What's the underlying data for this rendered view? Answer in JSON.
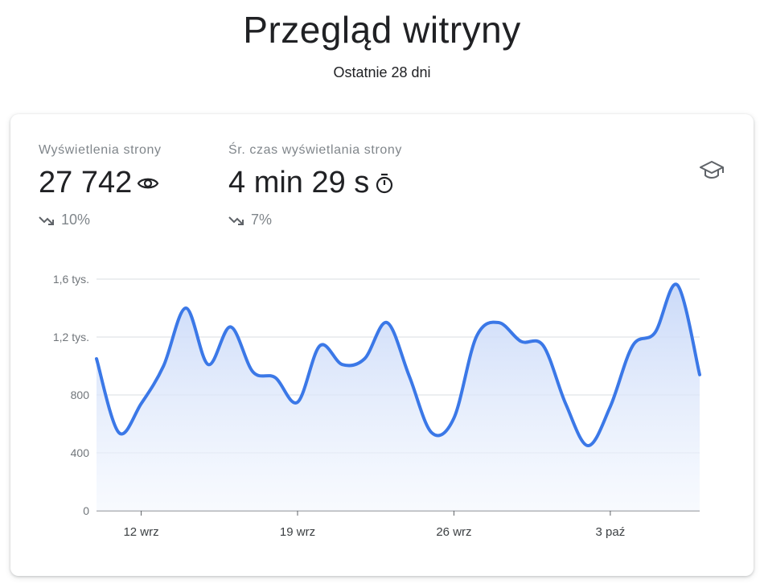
{
  "header": {
    "title": "Przegląd witryny",
    "subtitle": "Ostatnie 28 dni"
  },
  "metrics": [
    {
      "label": "Wyświetlenia strony",
      "value": "27 742",
      "icon": "eye-icon",
      "change": "10%",
      "trend": "down"
    },
    {
      "label": "Śr. czas wyświetlania strony",
      "value": "4 min 29 s",
      "icon": "timer-icon",
      "change": "7%",
      "trend": "down"
    }
  ],
  "help_icon": "graduation-cap-icon",
  "colors": {
    "line": "#3b78e7",
    "fill_top": "#c8d8f8",
    "fill_bottom": "#f3f7fe",
    "grid": "#dadce0",
    "text_secondary": "#80868b"
  },
  "chart_data": {
    "type": "area",
    "x": [
      "2022-09-10",
      "2022-09-11",
      "2022-09-12",
      "2022-09-13",
      "2022-09-14",
      "2022-09-15",
      "2022-09-16",
      "2022-09-17",
      "2022-09-18",
      "2022-09-19",
      "2022-09-20",
      "2022-09-21",
      "2022-09-22",
      "2022-09-23",
      "2022-09-24",
      "2022-09-25",
      "2022-09-26",
      "2022-09-27",
      "2022-09-28",
      "2022-09-29",
      "2022-09-30",
      "2022-10-01",
      "2022-10-02",
      "2022-10-03",
      "2022-10-04",
      "2022-10-05",
      "2022-10-06",
      "2022-10-07"
    ],
    "values": [
      1050,
      540,
      740,
      1000,
      1400,
      1010,
      1270,
      960,
      920,
      750,
      1140,
      1010,
      1050,
      1300,
      930,
      540,
      640,
      1200,
      1300,
      1170,
      1140,
      740,
      450,
      720,
      1140,
      1230,
      1560,
      940
    ],
    "ylim": [
      0,
      1600
    ],
    "yticks": [
      0,
      400,
      800,
      1200,
      1600
    ],
    "ytick_labels": [
      "0",
      "400",
      "800",
      "1,2 tys.",
      "1,6 tys."
    ],
    "xtick_dates": [
      "2022-09-12",
      "2022-09-19",
      "2022-09-26",
      "2022-10-03"
    ],
    "xtick_labels": [
      "12 wrz",
      "19 wrz",
      "26 wrz",
      "3 paź"
    ],
    "grid": true,
    "legend": "none"
  }
}
